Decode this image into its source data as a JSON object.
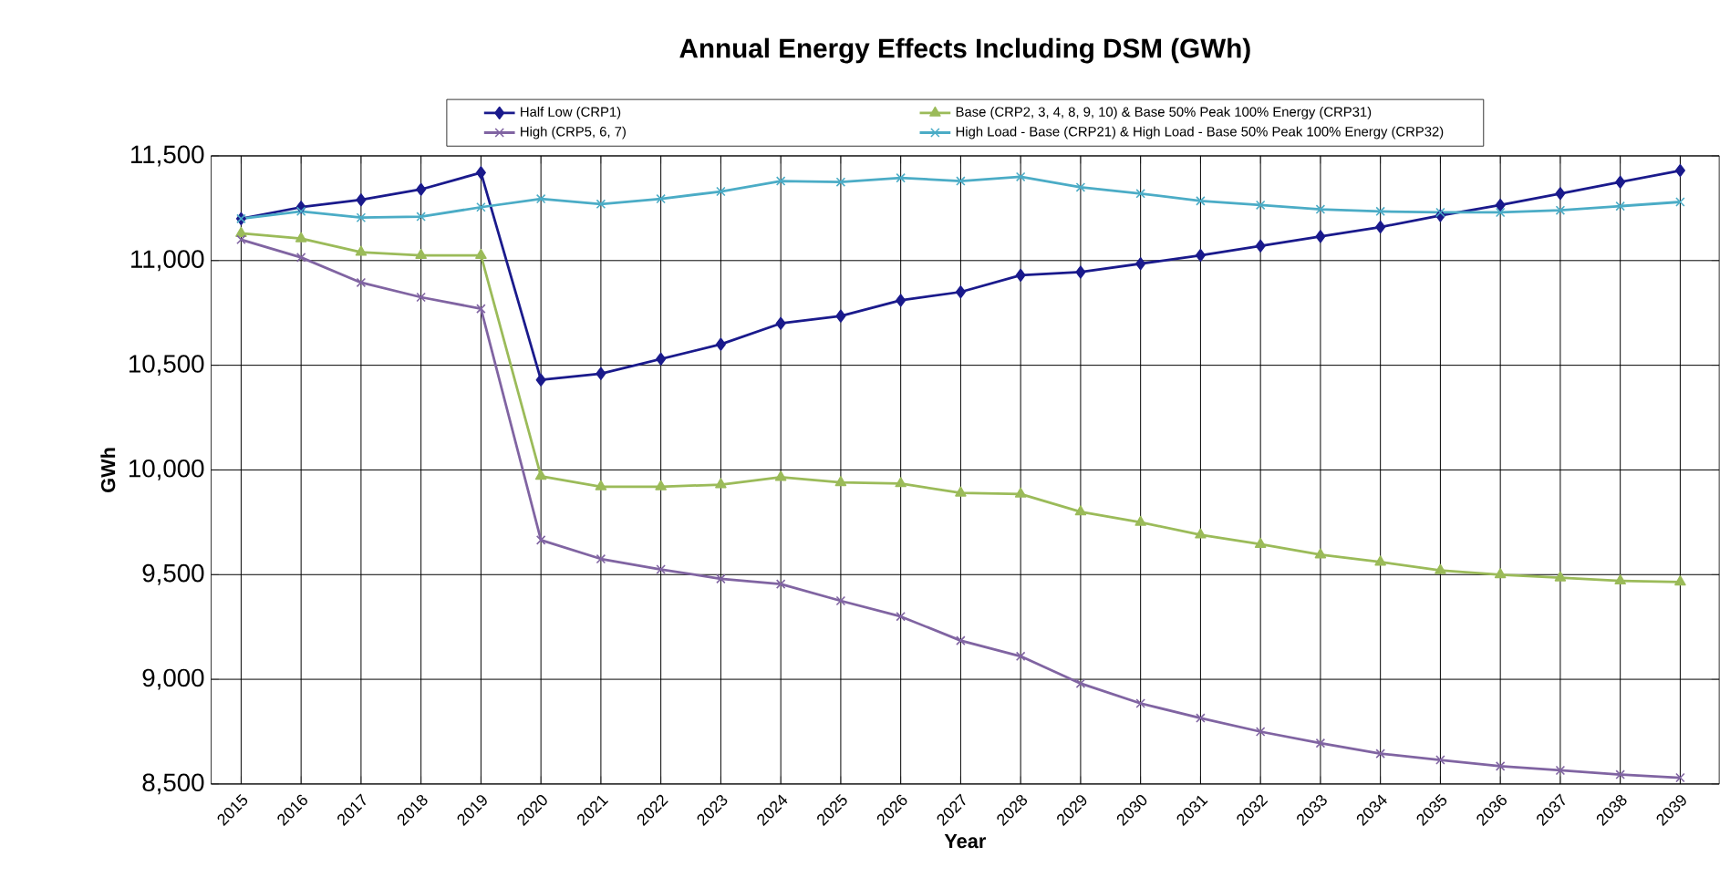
{
  "chart_data": {
    "type": "line",
    "title": "Annual Energy Effects Including DSM (GWh)",
    "xlabel": "Year",
    "ylabel": "GWh",
    "x": [
      2015,
      2016,
      2017,
      2018,
      2019,
      2020,
      2021,
      2022,
      2023,
      2024,
      2025,
      2026,
      2027,
      2028,
      2029,
      2030,
      2031,
      2032,
      2033,
      2034,
      2035,
      2036,
      2037,
      2038,
      2039
    ],
    "series": [
      {
        "name": "Half Low (CRP1)",
        "color": "#1a1a8c",
        "marker": "diamond",
        "values": [
          11200,
          11255,
          11290,
          11340,
          11420,
          10430,
          10460,
          10530,
          10600,
          10700,
          10735,
          10810,
          10850,
          10930,
          10945,
          10985,
          11025,
          11070,
          11115,
          11160,
          11215,
          11265,
          11320,
          11375,
          11430
        ]
      },
      {
        "name": "Base (CRP2, 3, 4, 8, 9, 10) & Base 50% Peak 100% Energy (CRP31)",
        "color": "#9bbb59",
        "marker": "triangle",
        "values": [
          11130,
          11105,
          11040,
          11025,
          11025,
          9970,
          9920,
          9920,
          9930,
          9965,
          9940,
          9935,
          9890,
          9885,
          9800,
          9750,
          9690,
          9645,
          9595,
          9560,
          9520,
          9500,
          9485,
          9470,
          9465
        ]
      },
      {
        "name": "High (CRP5, 6, 7)",
        "color": "#8064a2",
        "marker": "cross",
        "values": [
          11100,
          11015,
          10895,
          10825,
          10770,
          9665,
          9575,
          9525,
          9480,
          9455,
          9375,
          9300,
          9185,
          9110,
          8980,
          8885,
          8815,
          8750,
          8695,
          8645,
          8615,
          8585,
          8565,
          8545,
          8530
        ]
      },
      {
        "name": "High Load - Base (CRP21) & High Load - Base 50% Peak 100% Energy (CRP32)",
        "color": "#4bacc6",
        "marker": "cross",
        "values": [
          11200,
          11235,
          11205,
          11210,
          11255,
          11295,
          11270,
          11295,
          11330,
          11380,
          11375,
          11395,
          11380,
          11400,
          11350,
          11320,
          11285,
          11265,
          11245,
          11235,
          11230,
          11230,
          11240,
          11260,
          11280
        ]
      }
    ],
    "xlim": [
      2014.5,
      2039.65
    ],
    "ylim": [
      8500,
      11500
    ],
    "xticks": [
      2015,
      2016,
      2017,
      2018,
      2019,
      2020,
      2021,
      2022,
      2023,
      2024,
      2025,
      2026,
      2027,
      2028,
      2029,
      2030,
      2031,
      2032,
      2033,
      2034,
      2035,
      2036,
      2037,
      2038,
      2039
    ],
    "yticks": [
      {
        "value": 8500,
        "label": "8,500"
      },
      {
        "value": 9000,
        "label": "9,000"
      },
      {
        "value": 9500,
        "label": "9,500"
      },
      {
        "value": 10000,
        "label": "10,000"
      },
      {
        "value": 10500,
        "label": "10,500"
      },
      {
        "value": 11000,
        "label": "11,000"
      },
      {
        "value": 11500,
        "label": "11,500"
      }
    ],
    "grid": true,
    "legend": "top",
    "line_style": "solid"
  }
}
